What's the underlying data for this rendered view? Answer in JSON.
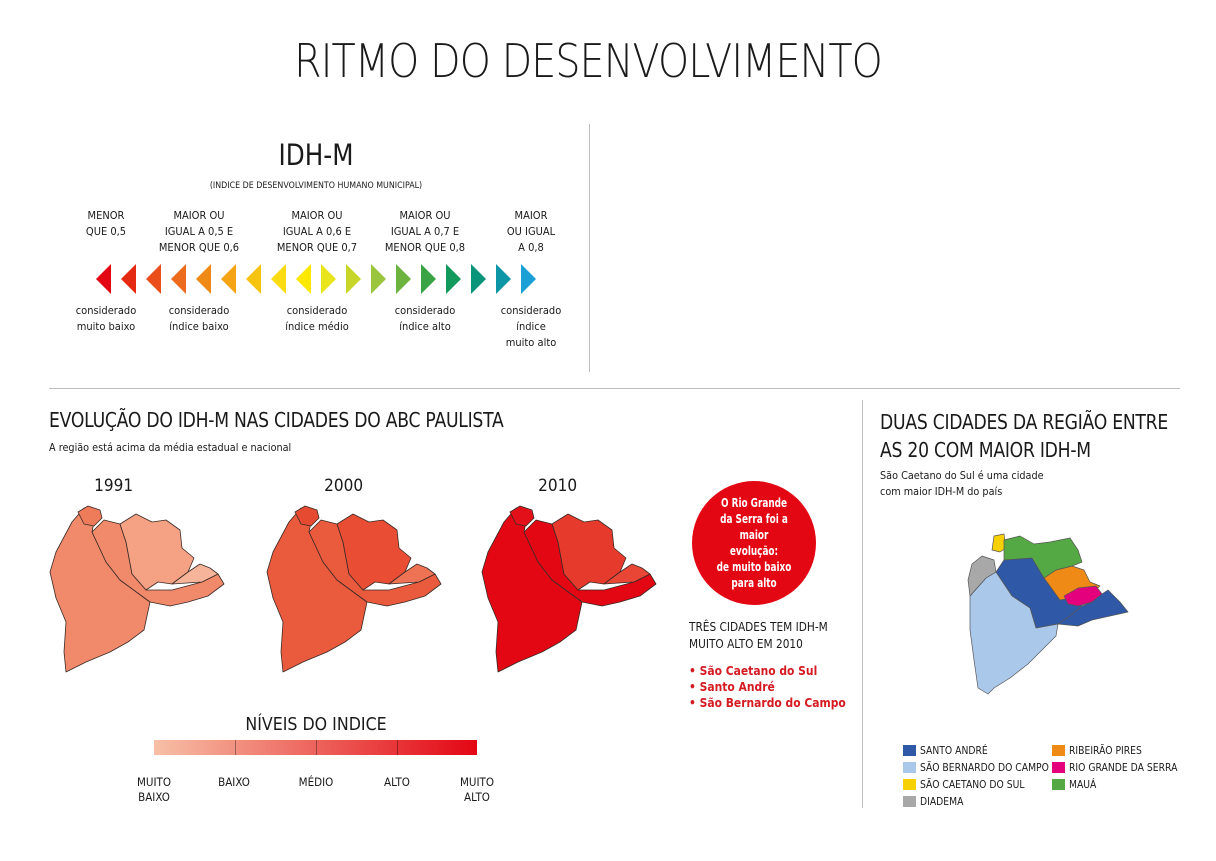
{
  "title": "RITMO DO DESENVOLVIMENTO",
  "idh": {
    "title": "IDH-M",
    "subtitle": "(INDICE DE DESENVOLVIMENTO HUMANO MUNICIPAL)",
    "ranges": [
      {
        "lines": [
          "MENOR",
          "QUE 0,5"
        ],
        "class": [
          "considerado",
          "muito baixo"
        ]
      },
      {
        "lines": [
          "MAIOR OU",
          "IGUAL A 0,5 E",
          "MENOR QUE 0,6"
        ],
        "class": [
          "considerado",
          "índice baixo"
        ]
      },
      {
        "lines": [
          "MAIOR OU",
          "IGUAL A 0,6 E",
          "MENOR QUE 0,7"
        ],
        "class": [
          "considerado",
          "índice médio"
        ]
      },
      {
        "lines": [
          "MAIOR OU",
          "IGUAL A 0,7 E",
          "MENOR QUE 0,8"
        ],
        "class": [
          "considerado",
          "índice alto"
        ]
      },
      {
        "lines": [
          "MAIOR",
          "OU IGUAL",
          "A 0,8"
        ],
        "class": [
          "considerado",
          "índice",
          "muito alto"
        ]
      }
    ],
    "arrow_colors": [
      "#e30613",
      "#e52a13",
      "#e94e1b",
      "#ec6b1c",
      "#ef8a17",
      "#f5a514",
      "#f7c311",
      "#fbdb12",
      "#ffe800",
      "#e9e51c",
      "#c8d62a",
      "#9ac53d",
      "#6cb43f",
      "#3aa345",
      "#119a5c",
      "#0a9479",
      "#0d96a6",
      "#1aa0d4"
    ]
  },
  "evolucao": {
    "title": "EVOLUÇÃO DO IDH-M NAS CIDADES DO ABC PAULISTA",
    "subtitle": "A região está acima da média estadual e nacional",
    "years": [
      "1991",
      "2000",
      "2010"
    ],
    "region_colors": {
      "1991": {
        "west": "#f08a6a",
        "center": "#f08a6a",
        "se": "#f6b59b",
        "ne": "#f4a283",
        "top": "#ee7c5b"
      },
      "2000": {
        "west": "#ea5a3d",
        "center": "#ea5a3d",
        "se": "#ee7355",
        "ne": "#e94e34",
        "top": "#e64a31"
      },
      "2010": {
        "west": "#e30613",
        "center": "#e30613",
        "se": "#e94636",
        "ne": "#e63b2c",
        "top": "#e3101a"
      }
    },
    "bubble": [
      "O Rio Grande",
      "da Serra foi a",
      "maior evolução:",
      "de muito baixo",
      "para alto"
    ],
    "three_cities_title": [
      "TRÊS CIDADES TEM IDH-M",
      "MUITO ALTO EM 2010"
    ],
    "three_cities": [
      "São Caetano do Sul",
      "Santo André",
      "São Bernardo do Campo"
    ]
  },
  "niveis": {
    "title": "NÍVEIS DO INDICE",
    "levels": [
      [
        "MUITO",
        "BAIXO"
      ],
      [
        "BAIXO"
      ],
      [
        "MÉDIO"
      ],
      [
        "ALTO"
      ],
      [
        "MUITO",
        "ALTO"
      ]
    ],
    "gradient_from": "#f7c0a6",
    "gradient_to": "#e30613"
  },
  "duas": {
    "title": [
      "DUAS CIDADES DA REGIÃO ENTRE",
      "AS 20 COM MAIOR IDH-M"
    ],
    "subtitle": [
      "São Caetano do Sul é uma cidade",
      "com maior IDH-M do país"
    ],
    "legend": [
      {
        "label": "SANTO ANDRÉ",
        "color": "#2f58a6"
      },
      {
        "label": "SÃO BERNARDO DO CAMPO",
        "color": "#a9c8ea"
      },
      {
        "label": "SÃO CAETANO DO SUL",
        "color": "#f7d000"
      },
      {
        "label": "DIADEMA",
        "color": "#a8a8a8"
      },
      {
        "label": "RIBEIRÃO PIRES",
        "color": "#ef8a17"
      },
      {
        "label": "RIO GRANDE DA SERRA",
        "color": "#e4007c"
      },
      {
        "label": "MAUÁ",
        "color": "#54a944"
      }
    ]
  }
}
